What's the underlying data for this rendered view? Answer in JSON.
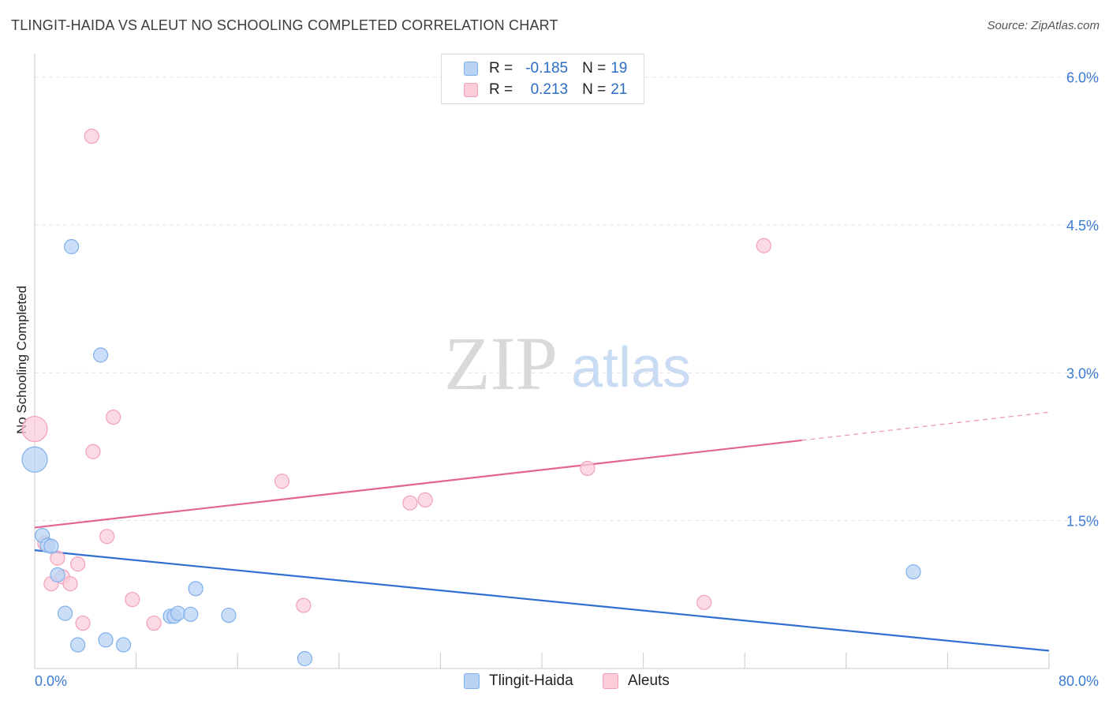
{
  "header": {
    "title": "TLINGIT-HAIDA VS ALEUT NO SCHOOLING COMPLETED CORRELATION CHART",
    "source": "Source: ZipAtlas.com"
  },
  "legend": {
    "r_label": "R =",
    "n_label": "N =",
    "items": [
      {
        "name": "Tlingit-Haida",
        "r": "-0.185",
        "n": "19",
        "color": "#7fb0ea",
        "fill": "#b9d3f5"
      },
      {
        "name": "Aleuts",
        "r": "0.213",
        "n": "21",
        "color": "#f2a0b7",
        "fill": "#fbcdd9"
      }
    ]
  },
  "watermark": {
    "part1": "ZIP",
    "part2": "atlas"
  },
  "chart_data": {
    "type": "scatter",
    "title": "TLINGIT-HAIDA VS ALEUT NO SCHOOLING COMPLETED CORRELATION CHART",
    "xlabel": "",
    "ylabel": "No Schooling Completed",
    "xlim": [
      0,
      80
    ],
    "ylim": [
      0,
      6.15
    ],
    "x_tick_labels": [
      "0.0%",
      "80.0%"
    ],
    "y_ticks": [
      1.5,
      3.0,
      4.5,
      6.0
    ],
    "y_tick_labels": [
      "1.5%",
      "3.0%",
      "4.5%",
      "6.0%"
    ],
    "grid": true,
    "legend_position": "top-center",
    "series": [
      {
        "name": "Tlingit-Haida",
        "color": "#2f6fd1",
        "fill": "#b9d3f5",
        "stroke": "#7fb0ea",
        "points": [
          [
            0.0,
            2.12,
            16
          ],
          [
            0.6,
            1.35,
            9
          ],
          [
            1.0,
            1.25,
            9
          ],
          [
            1.3,
            1.24,
            9
          ],
          [
            1.8,
            0.95,
            9
          ],
          [
            2.4,
            0.56,
            9
          ],
          [
            2.9,
            4.28,
            9
          ],
          [
            3.4,
            0.24,
            9
          ],
          [
            5.2,
            3.18,
            9
          ],
          [
            5.6,
            0.29,
            9
          ],
          [
            7.0,
            0.24,
            9
          ],
          [
            10.7,
            0.53,
            9
          ],
          [
            11.0,
            0.53,
            9
          ],
          [
            11.3,
            0.56,
            9
          ],
          [
            12.3,
            0.55,
            9
          ],
          [
            12.7,
            0.81,
            9
          ],
          [
            15.3,
            0.54,
            9
          ],
          [
            21.3,
            0.1,
            9
          ],
          [
            69.3,
            0.98,
            9
          ]
        ],
        "trend": {
          "x0": 0,
          "y0": 1.2,
          "x1": 80,
          "y1": 0.18,
          "solid_to": 80
        }
      },
      {
        "name": "Aleuts",
        "color": "#e26592",
        "fill": "#fbcdd9",
        "stroke": "#f2a0b7",
        "points": [
          [
            0.0,
            2.43,
            16
          ],
          [
            0.8,
            1.27,
            9
          ],
          [
            1.3,
            0.86,
            9
          ],
          [
            1.8,
            1.12,
            9
          ],
          [
            2.2,
            0.93,
            9
          ],
          [
            2.8,
            0.86,
            9
          ],
          [
            3.4,
            1.06,
            9
          ],
          [
            3.8,
            0.46,
            9
          ],
          [
            4.5,
            5.4,
            9
          ],
          [
            4.6,
            2.2,
            9
          ],
          [
            5.7,
            1.34,
            9
          ],
          [
            6.2,
            2.55,
            9
          ],
          [
            7.7,
            0.7,
            9
          ],
          [
            9.4,
            0.46,
            9
          ],
          [
            19.5,
            1.9,
            9
          ],
          [
            21.2,
            0.64,
            9
          ],
          [
            29.6,
            1.68,
            9
          ],
          [
            30.8,
            1.71,
            9
          ],
          [
            43.6,
            2.03,
            9
          ],
          [
            52.8,
            0.67,
            9
          ],
          [
            57.5,
            4.29,
            9
          ]
        ],
        "trend": {
          "x0": 0,
          "y0": 1.43,
          "x1": 80,
          "y1": 2.6,
          "solid_to": 60.5
        }
      }
    ]
  }
}
